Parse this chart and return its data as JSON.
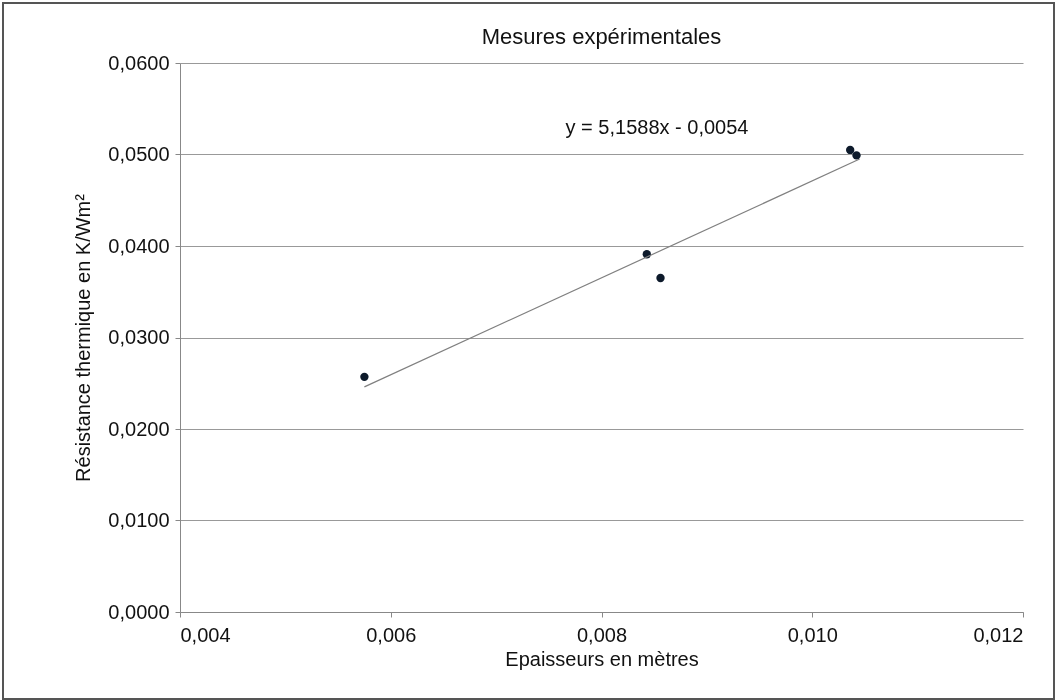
{
  "chart_data": {
    "type": "scatter",
    "title": "Mesures expérimentales",
    "xlabel": "Epaisseurs en mètres",
    "ylabel": "Résistance thermique en K/Wm²",
    "x": [
      0.00575,
      0.00843,
      0.00856,
      0.01036,
      0.01042
    ],
    "series": [
      {
        "marker": "circle",
        "color": "#0d1a2b",
        "values": [
          0.0257,
          0.0391,
          0.0365,
          0.0505,
          0.0499
        ]
      },
      {
        "type": "line",
        "color": "#808080",
        "x": [
          0.00575,
          0.01045
        ],
        "values": [
          0.0246,
          0.0495
        ]
      }
    ],
    "grid": "y",
    "xlim": [
      0.004,
      0.012
    ],
    "xticks": [
      {
        "value": 0.004,
        "label": "0,004"
      },
      {
        "value": 0.006,
        "label": "0,006"
      },
      {
        "value": 0.008,
        "label": "0,008"
      },
      {
        "value": 0.01,
        "label": "0,010"
      },
      {
        "value": 0.012,
        "label": "0,012"
      }
    ],
    "ylim": [
      0,
      0.06
    ],
    "yticks": [
      {
        "value": 0,
        "label": "0,0000"
      },
      {
        "value": 0.01,
        "label": "0,0100"
      },
      {
        "value": 0.02,
        "label": "0,0200"
      },
      {
        "value": 0.03,
        "label": "0,0300"
      },
      {
        "value": 0.04,
        "label": "0,0400"
      },
      {
        "value": 0.05,
        "label": "0,0500"
      },
      {
        "value": 0.06,
        "label": "0,0600"
      }
    ],
    "annotations": [
      "y = 5,1588x - 0,0054"
    ]
  }
}
